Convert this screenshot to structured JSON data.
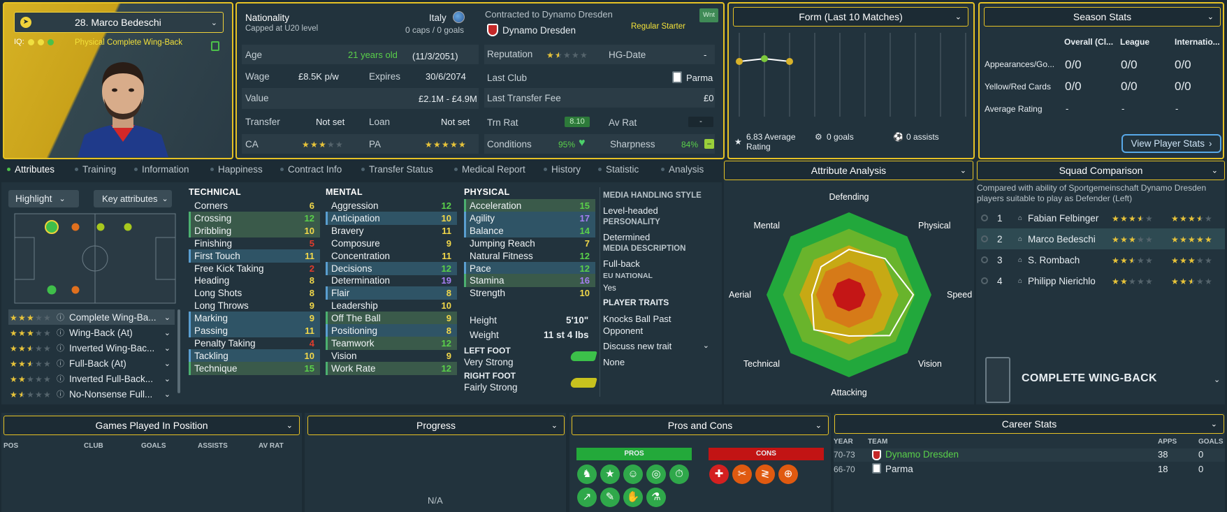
{
  "colors": {
    "accent": "#e6c225",
    "green": "#2fa84a",
    "red": "#c41e1e",
    "panel": "#22333d"
  },
  "player": {
    "name": "28. Marco Bedeschi",
    "iq_label": "IQ:",
    "role": "Physical Complete Wing-Back"
  },
  "info": {
    "nationality_label": "Nationality",
    "nationality": "Italy",
    "capped": "Capped at U20 level",
    "caps": "0 caps / 0 goals",
    "contract": "Contracted to Dynamo Dresden",
    "club": "Dynamo Dresden",
    "status": "Regular Starter",
    "wnt": "Wnt",
    "age_label": "Age",
    "age": "21 years old",
    "dob": "(11/3/2051)",
    "wage_label": "Wage",
    "wage": "£8.5K p/w",
    "expires_label": "Expires",
    "expires": "30/6/2074",
    "value_label": "Value",
    "value": "£2.1M - £4.9M",
    "transfer_label": "Transfer",
    "transfer": "Not set",
    "loan_label": "Loan",
    "loan": "Not set",
    "ca_label": "CA",
    "ca_stars": 3,
    "pa_label": "PA",
    "pa_stars": 5,
    "reputation_label": "Reputation",
    "reputation_stars": 1.5,
    "hg_label": "HG-Date",
    "hg": "-",
    "last_club_label": "Last Club",
    "last_club": "Parma",
    "fee_label": "Last Transfer Fee",
    "fee": "£0",
    "trn_label": "Trn Rat",
    "trn": "8.10",
    "av_label": "Av Rat",
    "av": "-",
    "cond_label": "Conditions",
    "cond": "95%",
    "sharp_label": "Sharpness",
    "sharp": "84%"
  },
  "form": {
    "title": "Form (Last 10 Matches)",
    "avg": "6.83 Average Rating",
    "goals": "0 goals",
    "assists": "0 assists"
  },
  "season": {
    "title": "Season Stats",
    "cols": [
      "Overall (Cl...",
      "League",
      "Internatio..."
    ],
    "rows": [
      {
        "label": "Appearances/Go...",
        "v": [
          "0/0",
          "0/0",
          "0/0"
        ]
      },
      {
        "label": "Yellow/Red Cards",
        "v": [
          "0/0",
          "0/0",
          "0/0"
        ]
      },
      {
        "label": "Average Rating",
        "v": [
          "-",
          "-",
          "-"
        ]
      }
    ],
    "button": "View Player Stats"
  },
  "tabs": [
    "Attributes",
    "Training",
    "Information",
    "Happiness",
    "Contract Info",
    "Transfer Status",
    "Medical Report",
    "History",
    "Statistic",
    "Analysis"
  ],
  "highlight": "Highlight",
  "key_attrs": "Key attributes",
  "roles": [
    {
      "name": "Complete Wing-Ba...",
      "stars": 3
    },
    {
      "name": "Wing-Back (At)",
      "stars": 3
    },
    {
      "name": "Inverted Wing-Bac...",
      "stars": 2.5
    },
    {
      "name": "Full-Back (At)",
      "stars": 2.5
    },
    {
      "name": "Inverted Full-Back...",
      "stars": 2
    },
    {
      "name": "No-Nonsense Full...",
      "stars": 1.5
    }
  ],
  "technical": {
    "title": "TECHNICAL",
    "items": [
      {
        "n": "Corners",
        "v": "6",
        "c": "y",
        "h": ""
      },
      {
        "n": "Crossing",
        "v": "12",
        "c": "g",
        "h": "g"
      },
      {
        "n": "Dribbling",
        "v": "10",
        "c": "y",
        "h": "g"
      },
      {
        "n": "Finishing",
        "v": "5",
        "c": "r",
        "h": ""
      },
      {
        "n": "First Touch",
        "v": "11",
        "c": "y",
        "h": "b"
      },
      {
        "n": "Free Kick Taking",
        "v": "2",
        "c": "r",
        "h": ""
      },
      {
        "n": "Heading",
        "v": "8",
        "c": "y",
        "h": ""
      },
      {
        "n": "Long Shots",
        "v": "8",
        "c": "y",
        "h": ""
      },
      {
        "n": "Long Throws",
        "v": "9",
        "c": "y",
        "h": ""
      },
      {
        "n": "Marking",
        "v": "9",
        "c": "y",
        "h": "b"
      },
      {
        "n": "Passing",
        "v": "11",
        "c": "y",
        "h": "b"
      },
      {
        "n": "Penalty Taking",
        "v": "4",
        "c": "r",
        "h": ""
      },
      {
        "n": "Tackling",
        "v": "10",
        "c": "y",
        "h": "b"
      },
      {
        "n": "Technique",
        "v": "15",
        "c": "g",
        "h": "g"
      }
    ]
  },
  "mental": {
    "title": "MENTAL",
    "items": [
      {
        "n": "Aggression",
        "v": "12",
        "c": "g",
        "h": ""
      },
      {
        "n": "Anticipation",
        "v": "10",
        "c": "y",
        "h": "b"
      },
      {
        "n": "Bravery",
        "v": "11",
        "c": "y",
        "h": ""
      },
      {
        "n": "Composure",
        "v": "9",
        "c": "y",
        "h": ""
      },
      {
        "n": "Concentration",
        "v": "11",
        "c": "y",
        "h": ""
      },
      {
        "n": "Decisions",
        "v": "12",
        "c": "g",
        "h": "b"
      },
      {
        "n": "Determination",
        "v": "19",
        "c": "p",
        "h": ""
      },
      {
        "n": "Flair",
        "v": "8",
        "c": "y",
        "h": "b"
      },
      {
        "n": "Leadership",
        "v": "10",
        "c": "y",
        "h": ""
      },
      {
        "n": "Off The Ball",
        "v": "9",
        "c": "y",
        "h": "g"
      },
      {
        "n": "Positioning",
        "v": "8",
        "c": "y",
        "h": "b"
      },
      {
        "n": "Teamwork",
        "v": "12",
        "c": "g",
        "h": "g"
      },
      {
        "n": "Vision",
        "v": "9",
        "c": "y",
        "h": ""
      },
      {
        "n": "Work Rate",
        "v": "12",
        "c": "g",
        "h": "g"
      }
    ]
  },
  "physical": {
    "title": "PHYSICAL",
    "items": [
      {
        "n": "Acceleration",
        "v": "15",
        "c": "g",
        "h": "g"
      },
      {
        "n": "Agility",
        "v": "17",
        "c": "p",
        "h": "b"
      },
      {
        "n": "Balance",
        "v": "14",
        "c": "g",
        "h": "b"
      },
      {
        "n": "Jumping Reach",
        "v": "7",
        "c": "y",
        "h": ""
      },
      {
        "n": "Natural Fitness",
        "v": "12",
        "c": "g",
        "h": ""
      },
      {
        "n": "Pace",
        "v": "12",
        "c": "g",
        "h": "b"
      },
      {
        "n": "Stamina",
        "v": "16",
        "c": "p",
        "h": "g"
      },
      {
        "n": "Strength",
        "v": "10",
        "c": "y",
        "h": ""
      }
    ],
    "height_label": "Height",
    "height": "5'10\"",
    "weight_label": "Weight",
    "weight": "11 st 4 lbs",
    "left_foot_label": "LEFT FOOT",
    "left_foot": "Very Strong",
    "right_foot_label": "RIGHT FOOT",
    "right_foot": "Fairly Strong"
  },
  "media": {
    "style_label": "MEDIA HANDLING STYLE",
    "style": "Level-headed",
    "personality_label": "PERSONALITY",
    "personality": "Determined",
    "desc_label": "MEDIA DESCRIPTION",
    "desc": "Full-back",
    "eu_label": "EU NATIONAL",
    "eu": "Yes",
    "traits_label": "PLAYER TRAITS",
    "trait": "Knocks Ball Past Opponent",
    "discuss": "Discuss new trait",
    "none": "None"
  },
  "attr_analysis": {
    "title": "Attribute Analysis",
    "axes": [
      "Defending",
      "Physical",
      "Speed",
      "Vision",
      "Attacking",
      "Technical",
      "Aerial",
      "Mental"
    ],
    "values": [
      0.55,
      0.62,
      0.78,
      0.7,
      0.5,
      0.6,
      0.45,
      0.48
    ]
  },
  "squad": {
    "title": "Squad Comparison",
    "desc": "Compared with ability of Sportgemeinschaft Dynamo Dresden players suitable to play as Defender (Left)",
    "rows": [
      {
        "n": "1",
        "name": "Fabian Felbinger",
        "ca": 3.5,
        "pa": 3.5
      },
      {
        "n": "2",
        "name": "Marco Bedeschi",
        "ca": 3,
        "pa": 5
      },
      {
        "n": "3",
        "name": "S. Rombach",
        "ca": 2.5,
        "pa": 3
      },
      {
        "n": "4",
        "name": "Philipp Nierichlo",
        "ca": 2,
        "pa": 2.5
      }
    ],
    "role": "COMPLETE WING-BACK"
  },
  "gpip": {
    "title": "Games Played In Position",
    "cols": [
      "POS",
      "CLUB",
      "GOALS",
      "ASSISTS",
      "AV RAT"
    ]
  },
  "progress": {
    "title": "Progress",
    "na": "N/A"
  },
  "proscons": {
    "title": "Pros and Cons",
    "pros": "PROS",
    "cons": "CONS"
  },
  "career": {
    "title": "Career Stats",
    "cols": [
      "YEAR",
      "TEAM",
      "APPS",
      "GOALS"
    ],
    "rows": [
      {
        "year": "70-73",
        "team": "Dynamo Dresden",
        "apps": "38",
        "goals": "0"
      },
      {
        "year": "66-70",
        "team": "Parma",
        "apps": "18",
        "goals": "0"
      }
    ]
  }
}
